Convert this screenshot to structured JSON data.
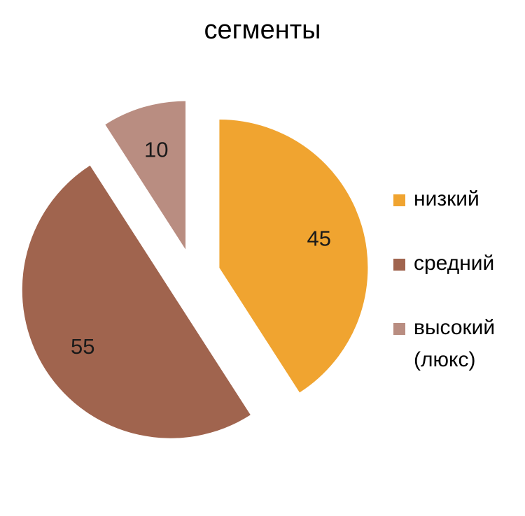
{
  "chart_data": {
    "type": "pie",
    "title": "сегменты",
    "categories": [
      "низкий",
      "средний",
      "высокий (люкс)"
    ],
    "values": [
      45,
      55,
      10
    ],
    "data_labels": [
      "45",
      "55",
      "10"
    ],
    "colors": [
      "#F0A430",
      "#A0644E",
      "#B98D81"
    ],
    "exploded": true,
    "legend_position": "right"
  }
}
